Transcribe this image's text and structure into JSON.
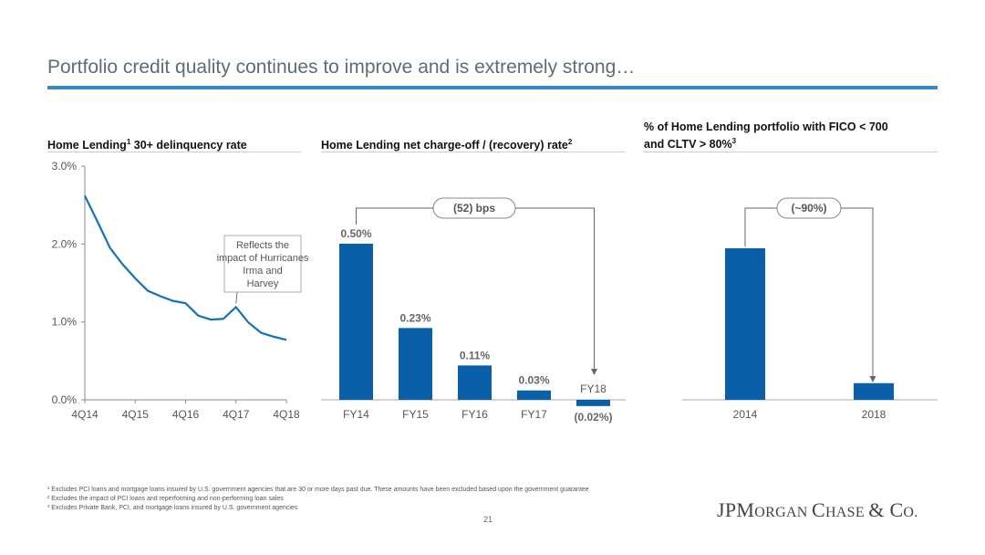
{
  "slide_title": "Portfolio credit quality continues to improve and is extremely strong…",
  "colors": {
    "accent": "#3a87c8",
    "bar": "#0b5ea8",
    "line": "#1272b8"
  },
  "chart_data": [
    {
      "type": "line",
      "title": "Home Lending",
      "title_sup": "1",
      "title_rest": " 30+ delinquency rate",
      "xlabel": "",
      "ylabel": "",
      "x_tick_labels": [
        "4Q14",
        "4Q15",
        "4Q16",
        "4Q17",
        "4Q18"
      ],
      "y_tick_labels": [
        "0.0%",
        "1.0%",
        "2.0%",
        "3.0%"
      ],
      "ylim": [
        0,
        3.0
      ],
      "series": [
        {
          "values": [
            2.62,
            2.29,
            1.95,
            1.74,
            1.56,
            1.4,
            1.33,
            1.27,
            1.24,
            1.08,
            1.03,
            1.04,
            1.19,
            0.99,
            0.86,
            0.81,
            0.77
          ]
        }
      ],
      "annotation": "Reflects the impact of Hurricanes Irma and Harvey",
      "annotation_point": 12
    },
    {
      "type": "bar",
      "title": "Home Lending net charge-off / (recovery) rate",
      "title_sup": "2",
      "categories": [
        "FY14",
        "FY15",
        "FY16",
        "FY17",
        "FY18"
      ],
      "values": [
        0.5,
        0.23,
        0.11,
        0.03,
        -0.02
      ],
      "data_labels": [
        "0.50%",
        "0.23%",
        "0.11%",
        "0.03%",
        "(0.02%)"
      ],
      "callout": "(52) bps"
    },
    {
      "type": "bar",
      "title_line1": "% of Home Lending portfolio with FICO < 700",
      "title_line2": "and CLTV > 80%",
      "title_sup": "3",
      "categories": [
        "2014",
        "2018"
      ],
      "values": [
        1.0,
        0.11
      ],
      "callout": "(~90%)"
    }
  ],
  "footnotes": [
    "¹ Excludes PCI loans and mortgage loans insured by U.S. government agencies that are 30 or more days past due. These amounts have been excluded based upon the government guarantee",
    "² Excludes the impact of PCI loans and reperforming and non-performing loan sales",
    "³ Excludes Private Bank, PCI, and mortgage loans insured by U.S. government agencies"
  ],
  "page_number": "21",
  "logo": {
    "p1": "JPM",
    "p2": "ORGAN ",
    "p3": "C",
    "p4": "HASE ",
    "p5": "& C",
    "p6": "O."
  }
}
